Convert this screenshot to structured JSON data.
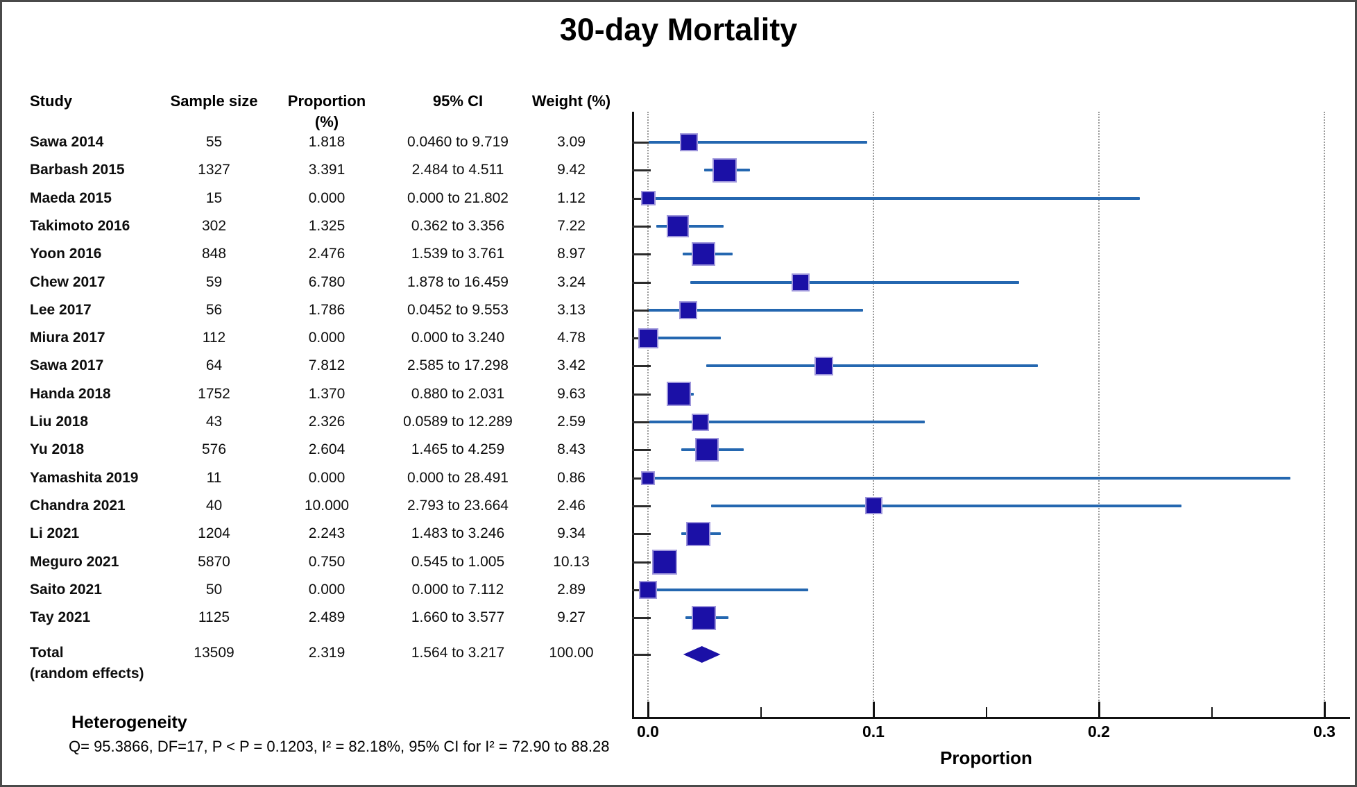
{
  "title": "30-day Mortality",
  "table": {
    "headers": {
      "study": "Study",
      "sample_size": "Sample size",
      "proportion": "Proportion (%)",
      "ci": "95% CI",
      "weight": "Weight (%)"
    }
  },
  "heterogeneity": {
    "title": "Heterogeneity",
    "stats": "Q= 95.3866, DF=17, P < P = 0.1203, I² = 82.18%, 95% CI for I² = 72.90 to 88.28"
  },
  "chart_data": {
    "type": "forest",
    "title": "30-day Mortality",
    "xlabel": "Proportion",
    "xlim": [
      0.0,
      0.3
    ],
    "x_ticks": [
      0.0,
      0.1,
      0.2,
      0.3
    ],
    "x_minor_ticks": [
      0.05,
      0.15,
      0.25
    ],
    "grid": "dotted-vertical-at-major-ticks",
    "studies": [
      {
        "study": "Sawa 2014",
        "n": "55",
        "proportion": 1.818,
        "proportion_text": "1.818",
        "ci_low": 0.046,
        "ci_high": 9.719,
        "ci_text": "0.0460 to 9.719",
        "weight": 3.09,
        "weight_text": "3.09"
      },
      {
        "study": "Barbash 2015",
        "n": "1327",
        "proportion": 3.391,
        "proportion_text": "3.391",
        "ci_low": 2.484,
        "ci_high": 4.511,
        "ci_text": "2.484 to 4.511",
        "weight": 9.42,
        "weight_text": "9.42"
      },
      {
        "study": "Maeda 2015",
        "n": "15",
        "proportion": 0.0,
        "proportion_text": "0.000",
        "ci_low": 0.0,
        "ci_high": 21.802,
        "ci_text": "0.000 to 21.802",
        "weight": 1.12,
        "weight_text": "1.12"
      },
      {
        "study": "Takimoto 2016",
        "n": "302",
        "proportion": 1.325,
        "proportion_text": "1.325",
        "ci_low": 0.362,
        "ci_high": 3.356,
        "ci_text": "0.362 to 3.356",
        "weight": 7.22,
        "weight_text": "7.22"
      },
      {
        "study": "Yoon 2016",
        "n": "848",
        "proportion": 2.476,
        "proportion_text": "2.476",
        "ci_low": 1.539,
        "ci_high": 3.761,
        "ci_text": "1.539 to 3.761",
        "weight": 8.97,
        "weight_text": "8.97"
      },
      {
        "study": "Chew 2017",
        "n": "59",
        "proportion": 6.78,
        "proportion_text": "6.780",
        "ci_low": 1.878,
        "ci_high": 16.459,
        "ci_text": "1.878 to 16.459",
        "weight": 3.24,
        "weight_text": "3.24"
      },
      {
        "study": "Lee 2017",
        "n": "56",
        "proportion": 1.786,
        "proportion_text": "1.786",
        "ci_low": 0.0452,
        "ci_high": 9.553,
        "ci_text": "0.0452 to 9.553",
        "weight": 3.13,
        "weight_text": "3.13"
      },
      {
        "study": "Miura 2017",
        "n": "112",
        "proportion": 0.0,
        "proportion_text": "0.000",
        "ci_low": 0.0,
        "ci_high": 3.24,
        "ci_text": "0.000 to 3.240",
        "weight": 4.78,
        "weight_text": "4.78"
      },
      {
        "study": "Sawa 2017",
        "n": "64",
        "proportion": 7.812,
        "proportion_text": "7.812",
        "ci_low": 2.585,
        "ci_high": 17.298,
        "ci_text": "2.585 to 17.298",
        "weight": 3.42,
        "weight_text": "3.42"
      },
      {
        "study": "Handa 2018",
        "n": "1752",
        "proportion": 1.37,
        "proportion_text": "1.370",
        "ci_low": 0.88,
        "ci_high": 2.031,
        "ci_text": "0.880 to 2.031",
        "weight": 9.63,
        "weight_text": "9.63"
      },
      {
        "study": "Liu 2018",
        "n": "43",
        "proportion": 2.326,
        "proportion_text": "2.326",
        "ci_low": 0.0589,
        "ci_high": 12.289,
        "ci_text": "0.0589 to 12.289",
        "weight": 2.59,
        "weight_text": "2.59"
      },
      {
        "study": "Yu 2018",
        "n": "576",
        "proportion": 2.604,
        "proportion_text": "2.604",
        "ci_low": 1.465,
        "ci_high": 4.259,
        "ci_text": "1.465 to 4.259",
        "weight": 8.43,
        "weight_text": "8.43"
      },
      {
        "study": "Yamashita 2019",
        "n": "11",
        "proportion": 0.0,
        "proportion_text": "0.000",
        "ci_low": 0.0,
        "ci_high": 28.491,
        "ci_text": "0.000 to 28.491",
        "weight": 0.86,
        "weight_text": "0.86"
      },
      {
        "study": "Chandra 2021",
        "n": "40",
        "proportion": 10.0,
        "proportion_text": "10.000",
        "ci_low": 2.793,
        "ci_high": 23.664,
        "ci_text": "2.793 to 23.664",
        "weight": 2.46,
        "weight_text": "2.46"
      },
      {
        "study": "Li 2021",
        "n": "1204",
        "proportion": 2.243,
        "proportion_text": "2.243",
        "ci_low": 1.483,
        "ci_high": 3.246,
        "ci_text": "1.483 to 3.246",
        "weight": 9.34,
        "weight_text": "9.34"
      },
      {
        "study": "Meguro 2021",
        "n": "5870",
        "proportion": 0.75,
        "proportion_text": "0.750",
        "ci_low": 0.545,
        "ci_high": 1.005,
        "ci_text": "0.545 to 1.005",
        "weight": 10.13,
        "weight_text": "10.13"
      },
      {
        "study": "Saito 2021",
        "n": "50",
        "proportion": 0.0,
        "proportion_text": "0.000",
        "ci_low": 0.0,
        "ci_high": 7.112,
        "ci_text": "0.000 to 7.112",
        "weight": 2.89,
        "weight_text": "2.89"
      },
      {
        "study": "Tay 2021",
        "n": "1125",
        "proportion": 2.489,
        "proportion_text": "2.489",
        "ci_low": 1.66,
        "ci_high": 3.577,
        "ci_text": "1.660 to 3.577",
        "weight": 9.27,
        "weight_text": "9.27"
      }
    ],
    "total": {
      "study": "Total",
      "sublabel": "(random effects)",
      "n": "13509",
      "proportion": 2.319,
      "proportion_text": "2.319",
      "ci_low": 1.564,
      "ci_high": 3.217,
      "ci_text": "1.564 to 3.217",
      "weight": 100.0,
      "weight_text": "100.00"
    },
    "colors": {
      "marker_fill": "#1b10a6",
      "marker_border": "#9e96db",
      "ci_line": "#2467b0",
      "diamond_fill": "#1b10a6",
      "axis": "#111111",
      "gridline": "#9a9a9a"
    }
  }
}
